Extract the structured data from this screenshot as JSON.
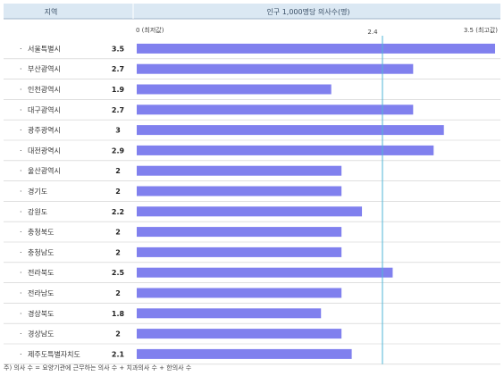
{
  "header": {
    "region_col": "지역",
    "value_col": "인구 1,000명당 의사수(명)"
  },
  "axis": {
    "min_label": "0 (최저값)",
    "max_label": "3.5 (최고값)",
    "ref_label": "2.4"
  },
  "footnote": "주) 의사 수 = 요양기관에 근무하는 의사 수 + 치과의사 수 + 한의사 수",
  "colors": {
    "bar": "#8080ee",
    "refline": "#4fb6d6",
    "header_bg": "#dbe8f3",
    "row_line": "#cccccc"
  },
  "chart_data": {
    "type": "bar",
    "orientation": "horizontal",
    "categories": [
      "서울특별시",
      "부산광역시",
      "인천광역시",
      "대구광역시",
      "광주광역시",
      "대전광역시",
      "울산광역시",
      "경기도",
      "강원도",
      "충청북도",
      "충청남도",
      "전라북도",
      "전라남도",
      "경상북도",
      "경상남도",
      "제주도특별자치도"
    ],
    "value_labels": [
      "3.5",
      "2.7",
      "1.9",
      "2.7",
      "3",
      "2.9",
      "2",
      "2",
      "2.2",
      "2",
      "2",
      "2.5",
      "2",
      "1.8",
      "2",
      "2.1"
    ],
    "values": [
      3.5,
      2.7,
      1.9,
      2.7,
      3,
      2.9,
      2,
      2,
      2.2,
      2,
      2,
      2.5,
      2,
      1.8,
      2,
      2.1
    ],
    "xlim": [
      0,
      3.5
    ],
    "reference_line": 2.4,
    "grid": false
  }
}
